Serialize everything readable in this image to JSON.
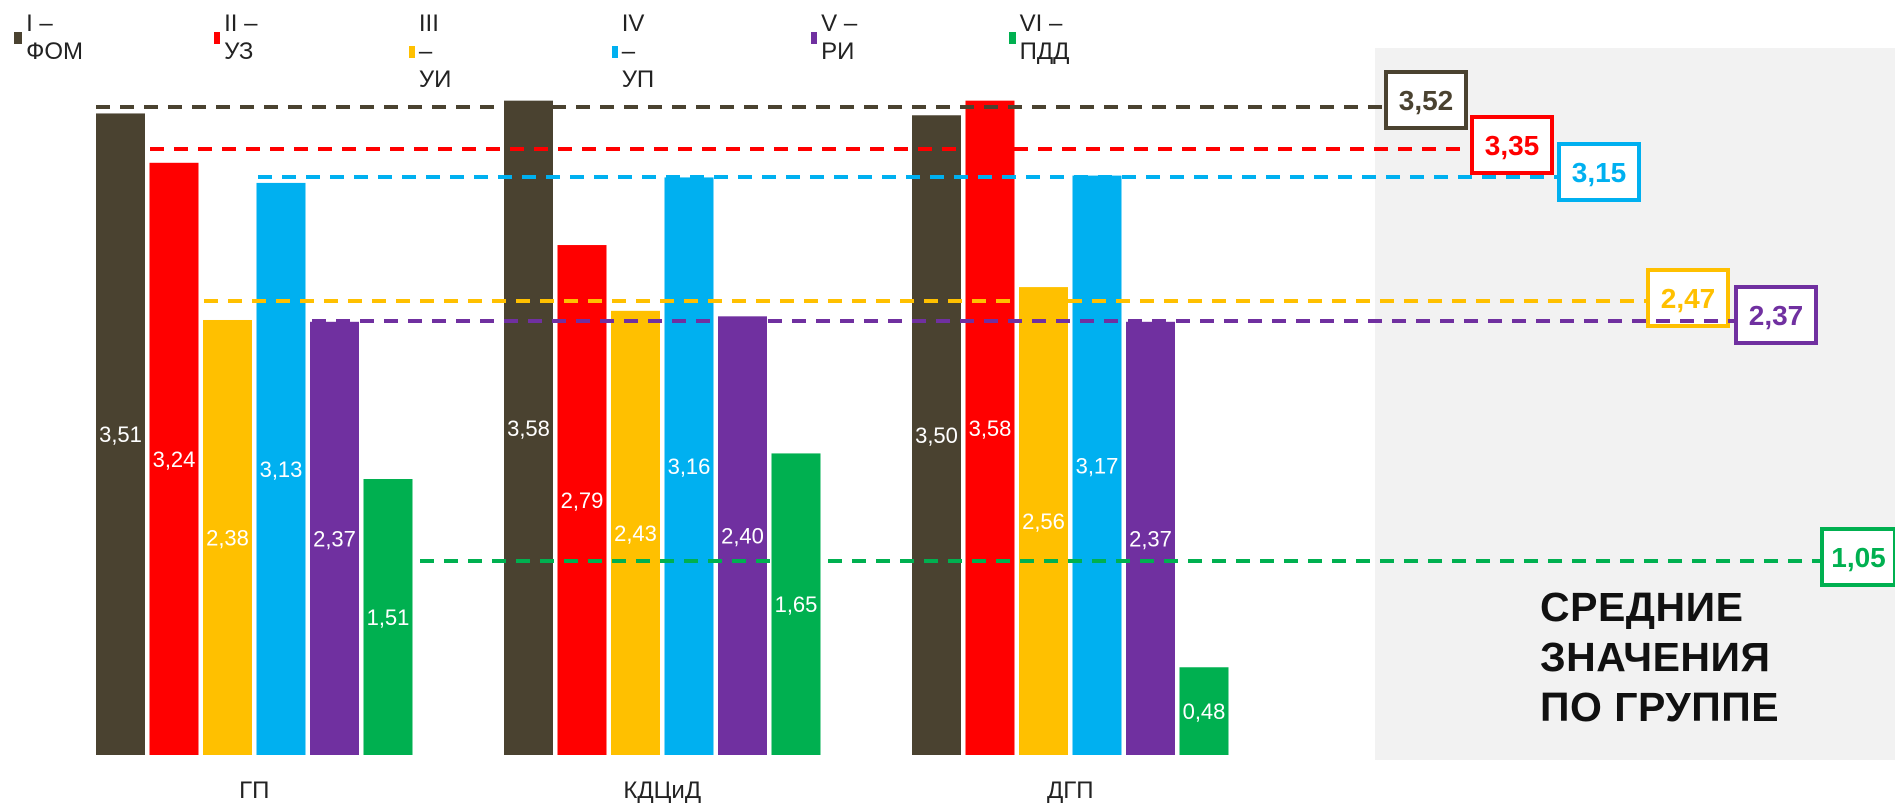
{
  "legend": [
    {
      "label": "I – ФОМ",
      "color": "#4a4230"
    },
    {
      "label": "II – УЗ",
      "color": "#ff0000"
    },
    {
      "label": "III – УИ",
      "color": "#ffc000"
    },
    {
      "label": "IV – УП",
      "color": "#00b0f0"
    },
    {
      "label": "V – РИ",
      "color": "#7030a0"
    },
    {
      "label": "VI – ПДД",
      "color": "#00b050"
    }
  ],
  "summary_panel": {
    "title": "СРЕДНИЕ\nЗНАЧЕНИЯ\nПО ГРУППЕ",
    "background": "#f2f2f2"
  },
  "chart_data": {
    "type": "bar",
    "categories": [
      "ГП",
      "КДЦиД",
      "ДГП"
    ],
    "ylim": [
      0,
      3.6
    ],
    "grid": false,
    "legend_position": "top-left",
    "series": [
      {
        "name": "I – ФОМ",
        "color": "#4a4230",
        "values": [
          3.51,
          3.58,
          3.5
        ],
        "labels": [
          "3,51",
          "3,58",
          "3,50"
        ]
      },
      {
        "name": "II – УЗ",
        "color": "#ff0000",
        "values": [
          3.24,
          2.79,
          3.58
        ],
        "labels": [
          "3,24",
          "2,79",
          "3,58"
        ]
      },
      {
        "name": "III – УИ",
        "color": "#ffc000",
        "values": [
          2.38,
          2.43,
          2.56
        ],
        "labels": [
          "2,38",
          "2,43",
          "2,56"
        ]
      },
      {
        "name": "IV – УП",
        "color": "#00b0f0",
        "values": [
          3.13,
          3.16,
          3.17
        ],
        "labels": [
          "3,13",
          "3,16",
          "3,17"
        ]
      },
      {
        "name": "V – РИ",
        "color": "#7030a0",
        "values": [
          2.37,
          2.4,
          2.37
        ],
        "labels": [
          "2,37",
          "2,40",
          "2,37"
        ]
      },
      {
        "name": "VI – ПДД",
        "color": "#00b050",
        "values": [
          1.51,
          1.65,
          0.48
        ],
        "labels": [
          "1,51",
          "1,65",
          "0,48"
        ]
      }
    ],
    "averages": [
      {
        "series": "I – ФОМ",
        "value": 3.52,
        "label": "3,52",
        "color": "#4a4230"
      },
      {
        "series": "II – УЗ",
        "value": 3.35,
        "label": "3,35",
        "color": "#ff0000"
      },
      {
        "series": "IV – УП",
        "value": 3.15,
        "label": "3,15",
        "color": "#00b0f0"
      },
      {
        "series": "III – УИ",
        "value": 2.47,
        "label": "2,47",
        "color": "#ffc000"
      },
      {
        "series": "V – РИ",
        "value": 2.37,
        "label": "2,37",
        "color": "#7030a0"
      },
      {
        "series": "VI – ПДД",
        "value": 1.05,
        "label": "1,05",
        "color": "#00b050"
      }
    ]
  }
}
